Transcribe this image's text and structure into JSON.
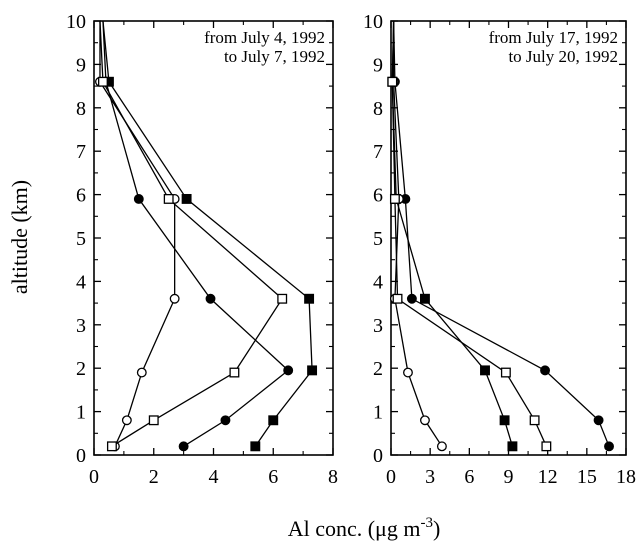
{
  "chart_data": [
    {
      "type": "line",
      "annotation_lines": [
        "from July 4, 1992",
        "to July 7, 1992"
      ],
      "xlim": [
        0,
        8
      ],
      "ylim": [
        0,
        10
      ],
      "xticks": [
        0,
        2,
        4,
        6,
        8
      ],
      "yticks": [
        0,
        1,
        2,
        3,
        4,
        5,
        6,
        7,
        8,
        9,
        10
      ],
      "series": [
        {
          "marker": "filled-circle",
          "points": [
            [
              0.3,
              10
            ],
            [
              0.4,
              8.6
            ],
            [
              1.5,
              5.9
            ],
            [
              3.9,
              3.6
            ],
            [
              6.5,
              1.95
            ],
            [
              4.4,
              0.8
            ],
            [
              3.0,
              0.2
            ]
          ]
        },
        {
          "marker": "filled-square",
          "points": [
            [
              0.3,
              10
            ],
            [
              0.5,
              8.6
            ],
            [
              3.1,
              5.9
            ],
            [
              7.2,
              3.6
            ],
            [
              7.3,
              1.95
            ],
            [
              6.0,
              0.8
            ],
            [
              5.4,
              0.2
            ]
          ]
        },
        {
          "marker": "open-circle",
          "points": [
            [
              0.2,
              10
            ],
            [
              0.2,
              8.6
            ],
            [
              2.7,
              5.9
            ],
            [
              2.7,
              3.6
            ],
            [
              1.6,
              1.9
            ],
            [
              1.1,
              0.8
            ],
            [
              0.7,
              0.2
            ]
          ]
        },
        {
          "marker": "open-square",
          "points": [
            [
              0.2,
              10
            ],
            [
              0.3,
              8.6
            ],
            [
              2.5,
              5.9
            ],
            [
              6.3,
              3.6
            ],
            [
              4.7,
              1.9
            ],
            [
              2.0,
              0.8
            ],
            [
              0.6,
              0.2
            ]
          ]
        }
      ]
    },
    {
      "type": "line",
      "annotation_lines": [
        "from July 17, 1992",
        "to July 20, 1992"
      ],
      "xlim": [
        0,
        18
      ],
      "ylim": [
        0,
        10
      ],
      "xticks": [
        0,
        3,
        6,
        9,
        12,
        15,
        18
      ],
      "yticks": [
        0,
        1,
        2,
        3,
        4,
        5,
        6,
        7,
        8,
        9,
        10
      ],
      "series": [
        {
          "marker": "filled-circle",
          "points": [
            [
              0.2,
              10
            ],
            [
              0.3,
              8.6
            ],
            [
              1.1,
              5.9
            ],
            [
              1.6,
              3.6
            ],
            [
              11.8,
              1.95
            ],
            [
              15.9,
              0.8
            ],
            [
              16.7,
              0.2
            ]
          ]
        },
        {
          "marker": "filled-square",
          "points": [
            [
              0.2,
              10
            ],
            [
              0.1,
              8.6
            ],
            [
              0.4,
              5.9
            ],
            [
              2.6,
              3.6
            ],
            [
              7.2,
              1.95
            ],
            [
              8.7,
              0.8
            ],
            [
              9.3,
              0.2
            ]
          ]
        },
        {
          "marker": "open-circle",
          "points": [
            [
              0.2,
              10
            ],
            [
              0.2,
              8.6
            ],
            [
              0.6,
              5.9
            ],
            [
              0.3,
              3.6
            ],
            [
              1.3,
              1.9
            ],
            [
              2.6,
              0.8
            ],
            [
              3.9,
              0.2
            ]
          ]
        },
        {
          "marker": "open-square",
          "points": [
            [
              0.2,
              10
            ],
            [
              0.1,
              8.6
            ],
            [
              0.3,
              5.9
            ],
            [
              0.5,
              3.6
            ],
            [
              8.8,
              1.9
            ],
            [
              11.0,
              0.8
            ],
            [
              11.9,
              0.2
            ]
          ]
        }
      ]
    }
  ],
  "axes": {
    "ylabel": "altitude (km)",
    "xlabel_prefix": "Al conc. (",
    "xlabel_mu": "μ",
    "xlabel_unit": "g m",
    "xlabel_exp": "-3",
    "xlabel_suffix": ")"
  }
}
